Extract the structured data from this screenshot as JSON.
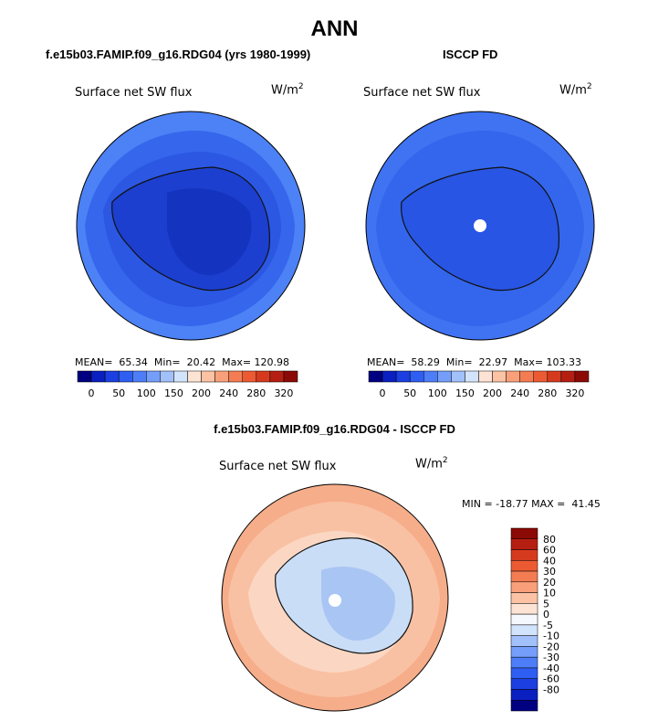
{
  "figure_title": "ANN",
  "colors": {
    "water_dark": "#2a52e0",
    "water_light": "#3b6ff0",
    "ice_dark": "#1737c9",
    "diff_ocean": "#f6b08e",
    "diff_ice": "#c6dcf5",
    "diff_mid": "#fbe1d0",
    "marker": "#ffffff"
  },
  "panels": {
    "top_left": {
      "subtitle": "f.e15b03.FAMIP.f09_g16.RDG04 (yrs 1980-1999)",
      "label": "Surface net SW flux",
      "unit_base": "W/m",
      "unit_exp": "2",
      "stats": "MEAN=  65.34  Min=  20.42  Max= 120.98"
    },
    "top_right": {
      "subtitle": "ISCCP FD",
      "label": "Surface net SW flux",
      "unit_base": "W/m",
      "unit_exp": "2",
      "stats": "MEAN=  58.29  Min=  22.97  Max= 103.33"
    },
    "bottom": {
      "subtitle": "f.e15b03.FAMIP.f09_g16.RDG04 - ISCCP FD",
      "label": "Surface net SW flux",
      "unit_base": "W/m",
      "unit_exp": "2",
      "stats": "MIN = -18.77 MAX =  41.45"
    }
  },
  "colorbar_top": {
    "colors": [
      "#000080",
      "#0a1fc0",
      "#1b3fe0",
      "#2e5ef2",
      "#4d7ef8",
      "#759efa",
      "#a2c0fa",
      "#d2e4fc",
      "#fde3d4",
      "#fcc2a4",
      "#f9a07a",
      "#f47c53",
      "#ec5a33",
      "#d63a1e",
      "#b51f12",
      "#8c0a06"
    ],
    "labels": [
      "0",
      "50",
      "100",
      "150",
      "200",
      "240",
      "280",
      "320"
    ]
  },
  "colorbar_diff": {
    "colors": [
      "#8c0a06",
      "#b51f12",
      "#d63a1e",
      "#ec5a33",
      "#f47c53",
      "#f9a07a",
      "#fcc2a4",
      "#fde3d4",
      "#f5f8fd",
      "#d2e4fc",
      "#a2c0fa",
      "#759efa",
      "#4d7ef8",
      "#2e5ef2",
      "#1b3fe0",
      "#0a1fc0",
      "#000080"
    ],
    "labels": [
      "80",
      "60",
      "40",
      "30",
      "20",
      "10",
      "5",
      "0",
      "-5",
      "-10",
      "-20",
      "-30",
      "-40",
      "-60",
      "-80"
    ]
  }
}
